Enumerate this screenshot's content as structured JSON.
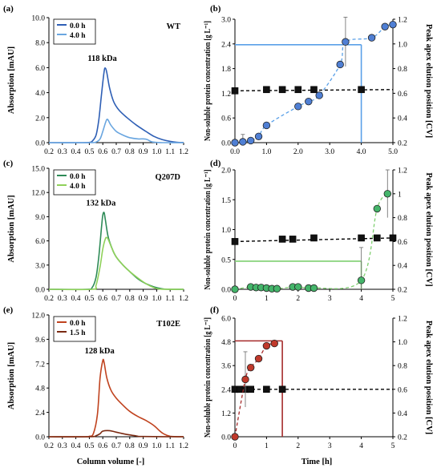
{
  "figure": {
    "bottom_left_xlabel": "Column volume  [-]",
    "bottom_right_xlabel": "Time [h]"
  },
  "chart_data": [
    {
      "id": "a",
      "type": "line",
      "panel_label": "(a)",
      "variant": "WT",
      "ylabel": "Absorption [mAU]",
      "xlim": [
        0.2,
        1.2
      ],
      "ylim": [
        0,
        10
      ],
      "xticks": [
        "0.2",
        "0.3",
        "0.4",
        "0.5",
        "0.6",
        "0.7",
        "0.8",
        "0.9",
        "1.0",
        "1.1",
        "1.2"
      ],
      "yticks": [
        "0.0",
        "2.0",
        "4.0",
        "6.0",
        "8.0",
        "10.0"
      ],
      "legend_position": "top-left",
      "annotation": "118 kDa",
      "series": [
        {
          "name": "0.0 h",
          "color": "#2e5fb5",
          "x": [
            0.2,
            0.45,
            0.5,
            0.52,
            0.55,
            0.57,
            0.59,
            0.61,
            0.62,
            0.63,
            0.65,
            0.68,
            0.72,
            0.78,
            0.85,
            0.92,
            0.98,
            1.04,
            1.1,
            1.15,
            1.2
          ],
          "y": [
            0,
            0,
            0.02,
            0.1,
            0.6,
            1.8,
            3.8,
            5.7,
            5.95,
            5.6,
            4.4,
            3.3,
            2.6,
            2.0,
            1.4,
            0.9,
            0.5,
            0.25,
            0.1,
            0.03,
            0.01
          ]
        },
        {
          "name": "4.0 h",
          "color": "#6aa6e0",
          "x": [
            0.2,
            0.5,
            0.55,
            0.58,
            0.6,
            0.62,
            0.63,
            0.64,
            0.66,
            0.7,
            0.75,
            0.8,
            0.86,
            0.9,
            0.93,
            0.96,
            1.0,
            1.05,
            1.2
          ],
          "y": [
            0,
            0,
            0.05,
            0.3,
            0.9,
            1.6,
            1.85,
            1.8,
            1.4,
            0.9,
            0.6,
            0.4,
            0.3,
            0.3,
            0.25,
            0.08,
            0.02,
            0,
            0
          ]
        }
      ]
    },
    {
      "id": "b",
      "type": "scatter",
      "panel_label": "(b)",
      "ylabel_left": "Non-soluble protein concentration [g L⁻¹]",
      "ylabel_right": "Peak apex elution position [CV]",
      "xlim": [
        0,
        5
      ],
      "ylim_left": [
        0,
        3.0
      ],
      "ylim_right": [
        0.2,
        1.2
      ],
      "xticks": [
        "0.0",
        "1.0",
        "2.0",
        "3.0",
        "4.0",
        "5.0"
      ],
      "yticks_left": [
        "0.0",
        "0.6",
        "1.2",
        "1.8",
        "2.4",
        "3.0"
      ],
      "yticks_right": [
        "0.2",
        "0.4",
        "0.6",
        "0.8",
        "1.0",
        "1.2"
      ],
      "color": "#4f7fd4",
      "line_color": "#5aa0e8",
      "concentration": {
        "x": [
          0,
          0.25,
          0.5,
          0.75,
          1.0,
          2.0,
          2.33,
          2.67,
          3.33,
          3.5,
          4.33,
          4.75,
          5.0
        ],
        "y": [
          0,
          0.02,
          0.05,
          0.15,
          0.42,
          0.88,
          1.0,
          1.15,
          1.9,
          2.45,
          2.55,
          2.82,
          2.87
        ],
        "err": [
          0,
          0.18,
          0,
          0,
          0,
          0,
          0,
          0,
          0,
          0.6,
          0,
          0,
          0.05
        ]
      },
      "peak_apex": {
        "x": [
          0,
          1.0,
          1.5,
          2.0,
          2.5,
          4.0
        ],
        "y": [
          0.62,
          0.63,
          0.63,
          0.63,
          0.63,
          0.63
        ]
      },
      "guide": {
        "level_left": 2.38,
        "time": 4.0
      }
    },
    {
      "id": "c",
      "type": "line",
      "panel_label": "(c)",
      "variant": "Q207D",
      "ylabel": "Absorption [mAU]",
      "xlim": [
        0.2,
        1.2
      ],
      "ylim": [
        0,
        15
      ],
      "xticks": [
        "0.2",
        "0.3",
        "0.4",
        "0.5",
        "0.6",
        "0.7",
        "0.8",
        "0.9",
        "1.0",
        "1.1",
        "1.2"
      ],
      "yticks": [
        "0.0",
        "3.0",
        "6.0",
        "9.0",
        "12.0",
        "15.0"
      ],
      "legend_position": "top-left",
      "annotation": "132 kDa",
      "series": [
        {
          "name": "0.0 h",
          "color": "#2e8b57",
          "x": [
            0.2,
            0.48,
            0.52,
            0.55,
            0.57,
            0.59,
            0.6,
            0.61,
            0.62,
            0.64,
            0.67,
            0.7,
            0.75,
            0.8,
            0.86,
            0.92,
            0.98,
            1.03,
            1.08,
            1.2
          ],
          "y": [
            0,
            0,
            0.2,
            1.5,
            4.0,
            7.6,
            9.2,
            9.5,
            8.5,
            6.5,
            5.0,
            4.0,
            3.0,
            2.2,
            1.3,
            0.7,
            0.3,
            0.1,
            0,
            0
          ]
        },
        {
          "name": "4.0 h",
          "color": "#8fd15a",
          "x": [
            0.2,
            0.52,
            0.55,
            0.58,
            0.6,
            0.62,
            0.63,
            0.64,
            0.67,
            0.7,
            0.75,
            0.8,
            0.86,
            0.92,
            0.98,
            1.03,
            1.2
          ],
          "y": [
            0,
            0,
            0.5,
            2.8,
            5.0,
            6.3,
            6.4,
            6.2,
            5.0,
            4.0,
            3.0,
            2.2,
            1.4,
            0.7,
            0.2,
            0.02,
            0
          ]
        }
      ]
    },
    {
      "id": "d",
      "type": "scatter",
      "panel_label": "(d)",
      "ylabel_left": "Non-soluble protein concentration [g L⁻¹]",
      "ylabel_right": "Peak apex elution position [CV]",
      "xlim": [
        0,
        5
      ],
      "ylim_left": [
        0,
        2.0
      ],
      "ylim_right": [
        0.2,
        1.2
      ],
      "xticks": [
        "0",
        "1",
        "2",
        "3",
        "4",
        "5"
      ],
      "yticks_left": [
        "0.0",
        "0.5",
        "1.0",
        "1.5",
        "2.0"
      ],
      "yticks_right": [
        "0.2",
        "0.4",
        "0.6",
        "0.8",
        "1",
        "1.2"
      ],
      "color": "#44b56a",
      "line_color": "#7fcf70",
      "concentration": {
        "x": [
          0,
          0.5,
          0.67,
          0.83,
          1.0,
          1.17,
          1.33,
          1.83,
          2.0,
          2.33,
          2.5,
          4.0,
          4.5,
          4.83
        ],
        "y": [
          0,
          0.04,
          0.03,
          0.03,
          0.02,
          0.01,
          0.01,
          0.04,
          0.04,
          0.02,
          0.02,
          0.15,
          1.35,
          1.6
        ],
        "err": [
          0,
          0,
          0,
          0,
          0,
          0,
          0,
          0,
          0,
          0,
          0,
          0.55,
          0,
          0.4
        ]
      },
      "peak_apex": {
        "x": [
          0,
          1.5,
          1.83,
          2.5,
          4.0,
          4.5,
          5.0
        ],
        "y": [
          0.6,
          0.62,
          0.62,
          0.63,
          0.63,
          0.63,
          0.63
        ]
      },
      "guide": {
        "level_left": 0.47,
        "time": 4.0
      }
    },
    {
      "id": "e",
      "type": "line",
      "panel_label": "(e)",
      "variant": "T102E",
      "ylabel": "Absorption [mAU]",
      "xlim": [
        0.2,
        1.2
      ],
      "ylim": [
        0,
        12
      ],
      "xticks": [
        "0.2",
        "0.3",
        "0.4",
        "0.5",
        "0.6",
        "0.7",
        "0.8",
        "0.9",
        "1.0",
        "1.1",
        "1.2"
      ],
      "yticks": [
        "0.0",
        "2.4",
        "4.8",
        "7.2",
        "9.6",
        "12.0"
      ],
      "legend_position": "top-left",
      "annotation": "128 kDa",
      "series": [
        {
          "name": "0.0 h",
          "color": "#c0431f",
          "x": [
            0.2,
            0.47,
            0.5,
            0.53,
            0.56,
            0.58,
            0.6,
            0.61,
            0.63,
            0.66,
            0.7,
            0.75,
            0.8,
            0.86,
            0.92,
            0.98,
            1.02,
            1.05,
            1.1,
            1.2
          ],
          "y": [
            0,
            0,
            0.05,
            0.3,
            2.2,
            5.8,
            7.5,
            7.3,
            5.8,
            4.6,
            3.8,
            3.1,
            2.5,
            2.0,
            1.6,
            1.1,
            0.6,
            0.3,
            0.05,
            0
          ]
        },
        {
          "name": "1.5 h",
          "color": "#7b2a12",
          "x": [
            0.2,
            0.5,
            0.55,
            0.58,
            0.6,
            0.65,
            0.7,
            0.75,
            0.8,
            0.85,
            0.9,
            1.2
          ],
          "y": [
            0,
            0,
            0.1,
            0.3,
            0.55,
            0.6,
            0.45,
            0.3,
            0.18,
            0.08,
            0.02,
            0
          ]
        }
      ]
    },
    {
      "id": "f",
      "type": "scatter",
      "panel_label": "(f)",
      "ylabel_left": "Non-soluble protein concentration [g L⁻¹]",
      "ylabel_right": "Peak apex elution position [CV]",
      "xlim": [
        0,
        5
      ],
      "ylim_left": [
        0,
        6.0
      ],
      "ylim_right": [
        0.2,
        1.2
      ],
      "xticks": [
        "0",
        "1",
        "2",
        "3",
        "4",
        "5"
      ],
      "yticks_left": [
        "0.0",
        "1.2",
        "2.4",
        "3.6",
        "4.8",
        "6.0"
      ],
      "yticks_right": [
        "0.2",
        "0.4",
        "0.6",
        "0.8",
        "1.0",
        "1.2"
      ],
      "color": "#c0392b",
      "line_color": "#a52a2a",
      "concentration": {
        "x": [
          0,
          0.33,
          0.5,
          0.75,
          1.0,
          1.25
        ],
        "y": [
          0,
          2.9,
          3.5,
          3.95,
          4.6,
          4.72
        ],
        "err": [
          0,
          1.4,
          0,
          0,
          0,
          0.1
        ]
      },
      "peak_apex": {
        "x": [
          0,
          0.17,
          0.33,
          0.5,
          1.0,
          1.5
        ],
        "y": [
          0.6,
          0.6,
          0.6,
          0.6,
          0.6,
          0.6
        ]
      },
      "guide": {
        "level_left": 4.85,
        "time": 1.5
      }
    }
  ]
}
